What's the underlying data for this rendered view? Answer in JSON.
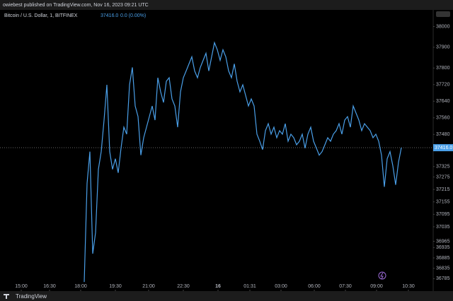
{
  "header": "owiebest published on TradingView.com, Nov 16, 2023 09:21 UTC",
  "footer_brand": "TradingView",
  "chart_data": {
    "type": "line",
    "title": "Bitcoin / U.S. Dollar, 1, BITFINEX",
    "last_price": {
      "value": 37416,
      "label": "37416.0"
    },
    "change": "0.0 (0.00%)",
    "color": "#4a9fe8",
    "grid": false,
    "values": [
      36769,
      37244,
      37397,
      36905,
      37007,
      37312,
      37397,
      37549,
      37719,
      37397,
      37312,
      37363,
      37295,
      37414,
      37515,
      37481,
      37719,
      37803,
      37617,
      37566,
      37380,
      37464,
      37515,
      37566,
      37617,
      37549,
      37753,
      37685,
      37634,
      37736,
      37753,
      37651,
      37617,
      37515,
      37685,
      37753,
      37786,
      37820,
      37854,
      37786,
      37753,
      37803,
      37837,
      37871,
      37786,
      37854,
      37922,
      37888,
      37837,
      37888,
      37854,
      37786,
      37753,
      37820,
      37736,
      37685,
      37719,
      37668,
      37617,
      37651,
      37617,
      37481,
      37447,
      37407,
      37498,
      37532,
      37481,
      37515,
      37464,
      37498,
      37481,
      37532,
      37447,
      37481,
      37464,
      37430,
      37447,
      37481,
      37414,
      37481,
      37515,
      37447,
      37414,
      37380,
      37397,
      37430,
      37464,
      37447,
      37481,
      37498,
      37532,
      37481,
      37549,
      37566,
      37515,
      37617,
      37583,
      37549,
      37498,
      37532,
      37515,
      37498,
      37464,
      37481,
      37447,
      37380,
      37227,
      37363,
      37397,
      37329,
      37237,
      37346,
      37416
    ],
    "xlim": [
      -29.75,
      123.25
    ],
    "xticks": [
      {
        "value": -22.25,
        "label": "15:00"
      },
      {
        "value": -12.25,
        "label": "16:30"
      },
      {
        "value": -1.25,
        "label": "18:00"
      },
      {
        "value": 11,
        "label": "19:30"
      },
      {
        "value": 22.75,
        "label": "21:00"
      },
      {
        "value": 35,
        "label": "22:30"
      },
      {
        "value": 47.25,
        "label": "16"
      },
      {
        "value": 58.5,
        "label": "01:31"
      },
      {
        "value": 69.5,
        "label": "03:00"
      },
      {
        "value": 81.25,
        "label": "06:00"
      },
      {
        "value": 92.25,
        "label": "07:30"
      },
      {
        "value": 103.25,
        "label": "09:00"
      },
      {
        "value": 114.5,
        "label": "10:30"
      }
    ],
    "ylim": [
      36725,
      38080
    ],
    "yticks": [
      38000,
      37900,
      37800,
      37720,
      37640,
      37560,
      37480,
      37325,
      37275,
      37215,
      37155,
      37095,
      37035,
      36965,
      36935,
      36885,
      36835,
      36785
    ]
  }
}
